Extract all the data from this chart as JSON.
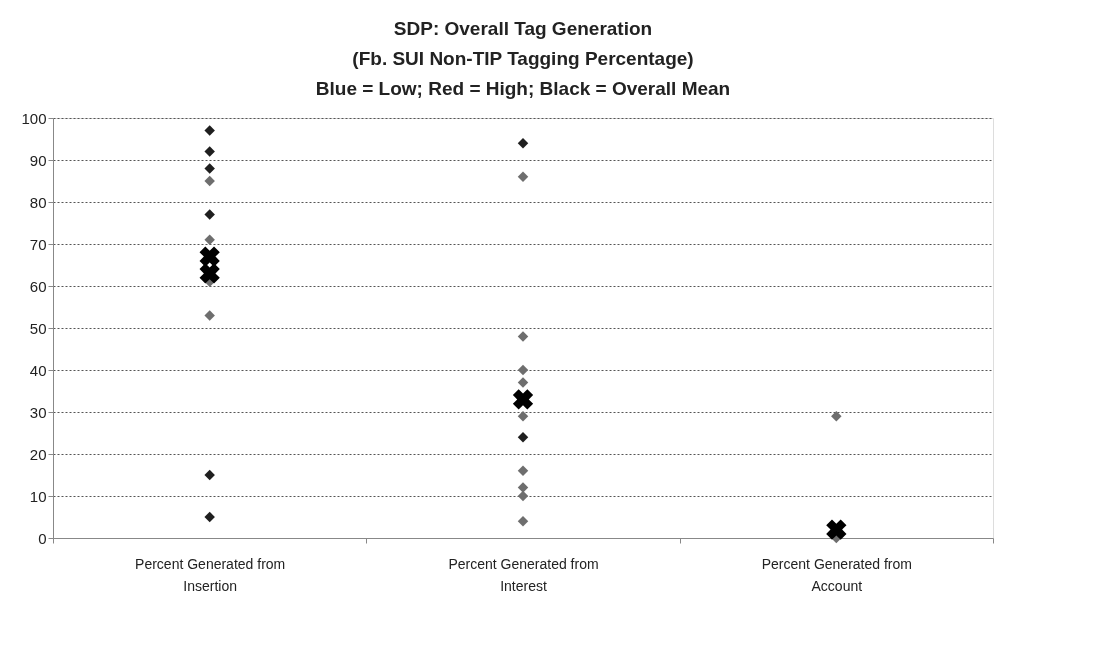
{
  "chart_data": {
    "type": "scatter",
    "title": "SDP: Overall Tag Generation\n(Fb. SUI Non-TIP Tagging Percentage)\nBlue = Low; Red = High; Black = Overall Mean",
    "categories": [
      "Percent Generated from Insertion",
      "Percent Generated from Interest",
      "Percent Generated from Account"
    ],
    "ylim": [
      0,
      100
    ],
    "yticks": [
      0,
      10,
      20,
      30,
      40,
      50,
      60,
      70,
      80,
      90,
      100
    ],
    "grid": "y",
    "series": [
      {
        "color": "#1f1f1f",
        "marker": "diamond",
        "x": [
          "Percent Generated from Insertion",
          "Percent Generated from Insertion",
          "Percent Generated from Insertion",
          "Percent Generated from Insertion",
          "Percent Generated from Insertion",
          "Percent Generated from Insertion",
          "Percent Generated from Interest",
          "Percent Generated from Interest"
        ],
        "values": [
          97,
          92,
          88,
          77,
          15,
          5,
          94,
          24
        ]
      },
      {
        "color": "#6e6e6e",
        "marker": "diamond",
        "x": [
          "Percent Generated from Insertion",
          "Percent Generated from Insertion",
          "Percent Generated from Insertion",
          "Percent Generated from Insertion",
          "Percent Generated from Interest",
          "Percent Generated from Interest",
          "Percent Generated from Interest",
          "Percent Generated from Interest",
          "Percent Generated from Interest",
          "Percent Generated from Interest",
          "Percent Generated from Interest",
          "Percent Generated from Interest",
          "Percent Generated from Interest",
          "Percent Generated from Account",
          "Percent Generated from Account"
        ],
        "values": [
          85,
          71,
          61,
          53,
          86,
          48,
          40,
          37,
          29,
          16,
          12,
          10,
          4,
          29,
          0
        ]
      },
      {
        "color": "#000000",
        "marker": "cross",
        "x": [
          "Percent Generated from Insertion",
          "Percent Generated from Insertion",
          "Percent Generated from Interest",
          "Percent Generated from Account"
        ],
        "values": [
          67,
          63,
          33,
          2
        ]
      }
    ]
  }
}
